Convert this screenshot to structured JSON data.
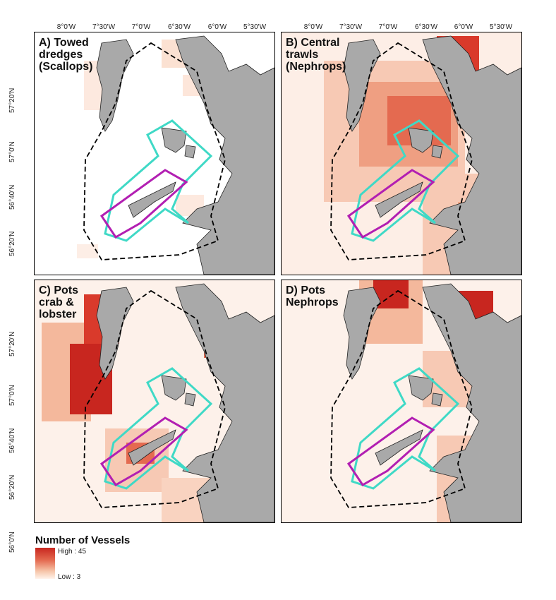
{
  "axes": {
    "lon_labels": [
      "8°0'W",
      "7°30'W",
      "7°0'W",
      "6°30'W",
      "6°0'W",
      "5°30'W"
    ],
    "lat_labels": [
      "57°20'N",
      "57°0'N",
      "56°40'N",
      "56°20'N",
      "56°0'N"
    ]
  },
  "panels": [
    {
      "title": "A) Towed\ndredges\n(Scallops)",
      "fishing_type": "Towed dredges (Scallops)"
    },
    {
      "title": "B) Central\ntrawls\n(Nephrops)",
      "fishing_type": "Central trawls (Nephrops)"
    },
    {
      "title": "C) Pots\ncrab &\nlobster",
      "fishing_type": "Pots crab & lobster"
    },
    {
      "title": "D) Pots\nNephrops",
      "fishing_type": "Pots Nephrops"
    }
  ],
  "legend": {
    "title": "Number of Vessels",
    "high_label": "High : 45",
    "low_label": "Low : 3",
    "high_color": "#c8261f",
    "low_color": "#fff3ea"
  },
  "colors": {
    "land": "#a9a9a9",
    "outer_boundary": "#000000",
    "cyan_boundary": "#3fd9c6",
    "magenta_boundary": "#b21fb2"
  }
}
